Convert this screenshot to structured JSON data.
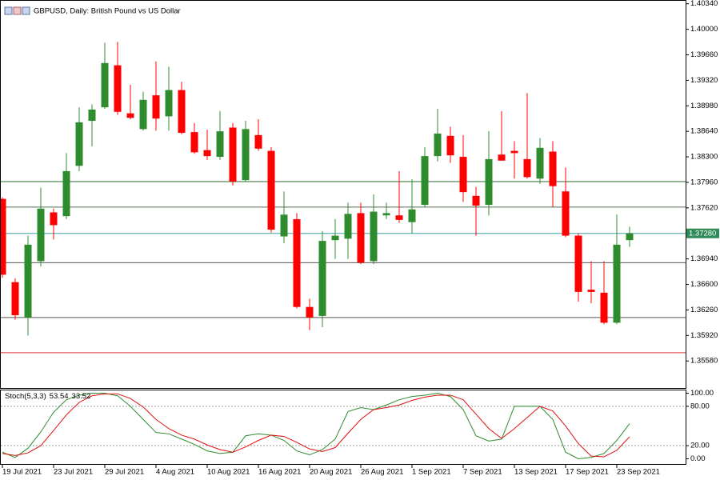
{
  "chart_data": [
    {
      "type": "candlestick",
      "title": "GBPUSD, Daily:  British Pound vs US Dollar",
      "categories": [
        "19 Jul 2021",
        null,
        null,
        null,
        "23 Jul 2021",
        null,
        null,
        null,
        "29 Jul 2021",
        null,
        null,
        null,
        "4 Aug 2021",
        null,
        null,
        null,
        "10 Aug 2021",
        null,
        null,
        null,
        "16 Aug 2021",
        null,
        null,
        null,
        "20 Aug 2021",
        null,
        null,
        null,
        "26 Aug 2021",
        null,
        null,
        null,
        "1 Sep 2021",
        null,
        null,
        null,
        "7 Sep 2021",
        null,
        null,
        null,
        "13 Sep 2021",
        null,
        null,
        null,
        "17 Sep 2021",
        null,
        null,
        null,
        "23 Sep 2021",
        null
      ],
      "open": [
        1.3774,
        1.3663,
        1.3616,
        1.3691,
        1.3756,
        1.3751,
        1.3818,
        1.3878,
        1.3896,
        1.3952,
        1.3888,
        1.3867,
        1.3912,
        1.3884,
        1.3919,
        1.3863,
        1.3839,
        1.383,
        1.3869,
        1.3799,
        1.3859,
        1.3838,
        1.3724,
        1.3747,
        1.363,
        1.3618,
        1.3719,
        1.3721,
        1.3755,
        1.3691,
        1.3752,
        1.3752,
        1.3743,
        1.3766,
        1.3831,
        1.3858,
        1.383,
        1.3778,
        1.3766,
        1.3833,
        1.3838,
        1.3827,
        1.3801,
        1.3837,
        1.3784,
        1.3725,
        1.3653,
        1.3649,
        1.3609,
        1.3719
      ],
      "high": [
        1.3776,
        1.3668,
        1.3725,
        1.3789,
        1.3761,
        1.3835,
        1.3896,
        1.39,
        1.3982,
        1.3983,
        1.3926,
        1.3917,
        1.3957,
        1.395,
        1.393,
        1.3875,
        1.3866,
        1.3891,
        1.3875,
        1.3878,
        1.388,
        1.3843,
        1.3784,
        1.3755,
        1.3641,
        1.3731,
        1.3747,
        1.3769,
        1.3769,
        1.378,
        1.3769,
        1.3811,
        1.38,
        1.3843,
        1.3894,
        1.387,
        1.3859,
        1.379,
        1.3864,
        1.3891,
        1.3851,
        1.3915,
        1.3855,
        1.3851,
        1.3816,
        1.3728,
        1.3691,
        1.3691,
        1.3753,
        1.3737
      ],
      "low": [
        1.3669,
        1.3613,
        1.3592,
        1.3684,
        1.372,
        1.3747,
        1.3811,
        1.3844,
        1.3894,
        1.3886,
        1.388,
        1.3865,
        1.3865,
        1.3865,
        1.386,
        1.3834,
        1.3826,
        1.3826,
        1.3792,
        1.3797,
        1.3838,
        1.3729,
        1.3715,
        1.3628,
        1.3599,
        1.3603,
        1.3694,
        1.3694,
        1.3687,
        1.3687,
        1.3747,
        1.3742,
        1.3728,
        1.3763,
        1.3824,
        1.3822,
        1.377,
        1.3725,
        1.3752,
        1.3825,
        1.3801,
        1.3801,
        1.3794,
        1.3763,
        1.3723,
        1.3637,
        1.3635,
        1.3607,
        1.3607,
        1.371
      ],
      "close": [
        1.3673,
        1.3619,
        1.3713,
        1.3761,
        1.3739,
        1.3811,
        1.3876,
        1.3893,
        1.3955,
        1.389,
        1.3882,
        1.3906,
        1.3881,
        1.3919,
        1.3862,
        1.3836,
        1.3831,
        1.3864,
        1.3797,
        1.3867,
        1.3841,
        1.3733,
        1.3753,
        1.363,
        1.3616,
        1.3718,
        1.3725,
        1.3754,
        1.3689,
        1.3757,
        1.3755,
        1.3746,
        1.376,
        1.3831,
        1.3861,
        1.3832,
        1.3783,
        1.3765,
        1.3827,
        1.3825,
        1.3835,
        1.3803,
        1.3842,
        1.3791,
        1.3725,
        1.365,
        1.365,
        1.3609,
        1.3713,
        1.3728
      ],
      "up_color": "#2e8b2e",
      "down_color": "#ff0000",
      "ylim": [
        1.3522,
        1.4039
      ],
      "yticks": [
        {
          "value": 1.4034,
          "label": "1.40340"
        },
        {
          "value": 1.4,
          "label": "1.40000"
        },
        {
          "value": 1.3966,
          "label": "1.39660"
        },
        {
          "value": 1.3932,
          "label": "1.39320"
        },
        {
          "value": 1.3898,
          "label": "1.38980"
        },
        {
          "value": 1.3864,
          "label": "1.38640"
        },
        {
          "value": 1.383,
          "label": "1.38300"
        },
        {
          "value": 1.3796,
          "label": "1.37960"
        },
        {
          "value": 1.3762,
          "label": "1.37620"
        },
        {
          "value": 1.3694,
          "label": "1.36940"
        },
        {
          "value": 1.366,
          "label": "1.36600"
        },
        {
          "value": 1.3626,
          "label": "1.36260"
        },
        {
          "value": 1.3592,
          "label": "1.35920"
        },
        {
          "value": 1.3558,
          "label": "1.35580"
        }
      ],
      "hlines": [
        {
          "value": 1.3797,
          "color": "#2e6b2e"
        },
        {
          "value": 1.3763,
          "color": "#4d6b4d"
        },
        {
          "value": 1.3689,
          "color": "#555555"
        },
        {
          "value": 1.3616,
          "color": "#555555"
        },
        {
          "value": 1.3569,
          "color": "#e03030"
        }
      ],
      "current_price": {
        "value": 1.3728,
        "label": "1.37280",
        "color": "#2e8b57"
      }
    },
    {
      "type": "line",
      "title": "Stoch(5,3,3)",
      "series": [
        {
          "color": "#2e8b2e",
          "values": [
            10,
            2,
            16,
            41,
            71,
            90,
            97,
            100,
            100,
            96,
            80,
            60,
            40,
            38,
            30,
            22,
            12,
            8,
            10,
            35,
            38,
            36,
            28,
            12,
            6,
            14,
            30,
            72,
            78,
            75,
            82,
            90,
            95,
            97,
            100,
            95,
            75,
            35,
            27,
            30,
            80,
            80,
            80,
            60,
            10,
            0,
            2,
            8,
            28,
            53.54
          ]
        },
        {
          "color": "#e01010",
          "values": [
            8,
            5,
            9,
            20,
            43,
            67,
            86,
            96,
            99,
            99,
            92,
            79,
            60,
            46,
            36,
            30,
            21,
            14,
            10,
            18,
            28,
            36,
            34,
            25,
            15,
            11,
            17,
            39,
            60,
            75,
            78,
            82,
            89,
            94,
            97,
            97,
            90,
            68,
            46,
            31,
            46,
            63,
            80,
            73,
            50,
            23,
            4,
            3,
            13,
            33.52
          ]
        }
      ],
      "ylim": [
        -8,
        105.5
      ],
      "yticks": [
        {
          "value": 100,
          "label": "100.00"
        },
        {
          "value": 80,
          "label": "80.00"
        },
        {
          "value": 20,
          "label": "20.00"
        },
        {
          "value": 0,
          "label": "0.00"
        }
      ],
      "levels": [
        80,
        20
      ]
    }
  ]
}
